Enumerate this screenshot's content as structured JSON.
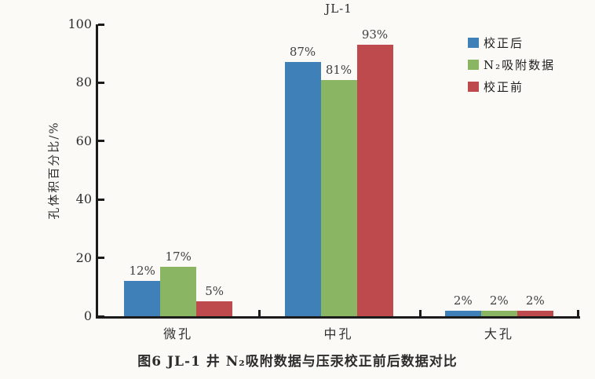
{
  "figure": {
    "caption": "图6  JL-1 井 N₂吸附数据与压汞校正前后数据对比"
  },
  "chart_data": {
    "type": "bar",
    "title": "JL-1",
    "categories": [
      "微孔",
      "中孔",
      "大孔"
    ],
    "series": [
      {
        "name": "校正后",
        "color": "#4080b8",
        "values": [
          12,
          87,
          2
        ],
        "labels": [
          "12%",
          "87%",
          "2%"
        ]
      },
      {
        "name": "N₂吸附数据",
        "color": "#8ab563",
        "values": [
          17,
          81,
          2
        ],
        "labels": [
          "17%",
          "81%",
          "2%"
        ]
      },
      {
        "name": "校正前",
        "color": "#bf4a4d",
        "values": [
          5,
          93,
          2
        ],
        "labels": [
          "5%",
          "93%",
          "2%"
        ]
      }
    ],
    "xlabel": "",
    "ylabel": "孔体积百分比/%",
    "ylim": [
      0,
      100
    ],
    "yticks": [
      0,
      20,
      40,
      60,
      80,
      100
    ],
    "legend_position": "top-right",
    "grid": false
  },
  "colors": {
    "axis": "#1b1b1b",
    "background": "#fbfaf6",
    "text": "#2e2e2e"
  }
}
